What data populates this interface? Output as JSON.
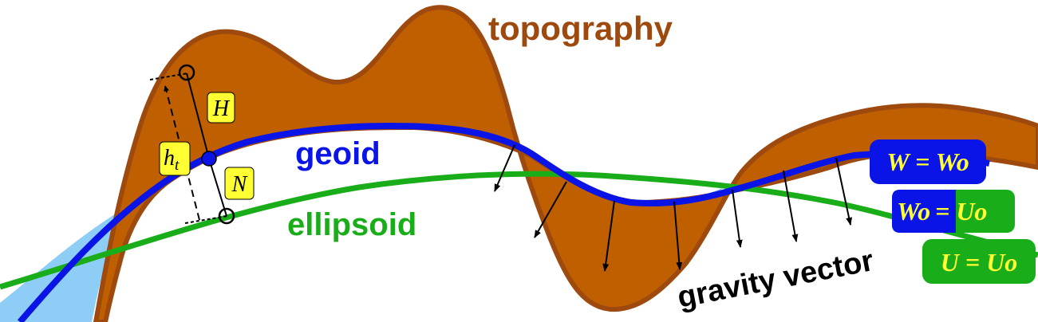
{
  "labels": {
    "topography": "topography",
    "geoid": "geoid",
    "ellipsoid": "ellipsoid",
    "gravity_vector": "gravity vector",
    "H": "H",
    "h": "h",
    "h_sub": "t",
    "N": "N"
  },
  "equations": {
    "w_eq": "W = Wo",
    "wo_left": "Wo",
    "wo_right": "= Uo",
    "u_eq": "U = Uo"
  },
  "colors": {
    "topography_fill": "#bf5f00",
    "topography_stroke": "#9e4a0f",
    "geoid": "#0a14e6",
    "ellipsoid": "#19ad19",
    "ocean": "#8ecdf5",
    "label_box": "#ffff33",
    "eq_text": "#ffff33"
  }
}
